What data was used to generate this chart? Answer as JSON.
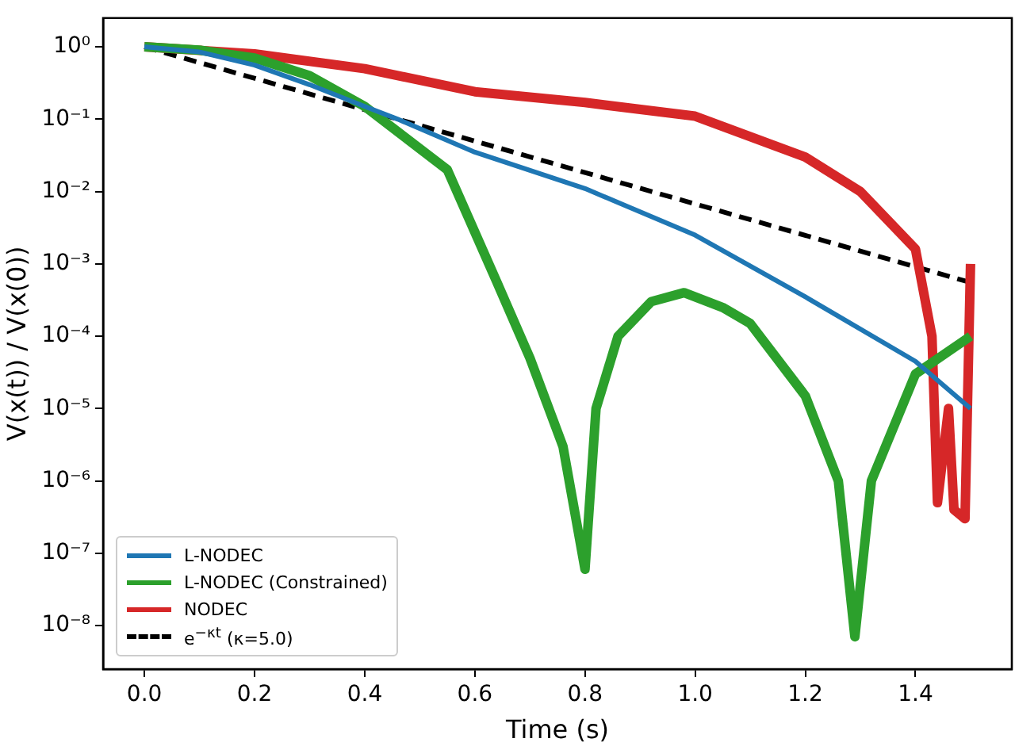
{
  "chart_data": {
    "type": "line",
    "xlabel": "Time (s)",
    "ylabel": "V(x(t)) / V(x(0))",
    "log": "y",
    "legend": "bottom left",
    "grid": false,
    "marker": "none",
    "xlim": [
      -0.075,
      1.575
    ],
    "xticks": [
      {
        "value": 0,
        "label": "0.0"
      },
      {
        "value": 0.2,
        "label": "0.2"
      },
      {
        "value": 0.4,
        "label": "0.4"
      },
      {
        "value": 0.6,
        "label": "0.6"
      },
      {
        "value": 0.8,
        "label": "0.8"
      },
      {
        "value": 1,
        "label": "1.0"
      },
      {
        "value": 1.2,
        "label": "1.2"
      },
      {
        "value": 1.4,
        "label": "1.4"
      }
    ],
    "ylim": [
      2.5e-09,
      2.5
    ],
    "yticks": [
      {
        "value": 1,
        "label": "10⁰"
      },
      {
        "value": 0.1,
        "label": "10⁻¹"
      },
      {
        "value": 0.01,
        "label": "10⁻²"
      },
      {
        "value": 0.001,
        "label": "10⁻³"
      },
      {
        "value": 0.0001,
        "label": "10⁻⁴"
      },
      {
        "value": 1e-05,
        "label": "10⁻⁵"
      },
      {
        "value": 1e-06,
        "label": "10⁻⁶"
      },
      {
        "value": 1e-07,
        "label": "10⁻⁷"
      },
      {
        "value": 1e-08,
        "label": "10⁻⁸"
      }
    ],
    "series": [
      {
        "name": "L-NODEC",
        "color": "#1f77b4",
        "x": [
          0,
          0.1,
          0.2,
          0.3,
          0.4,
          0.46,
          0.6,
          0.8,
          1.0,
          1.2,
          1.4,
          1.5
        ],
        "values": [
          1,
          0.85,
          0.56,
          0.3,
          0.15,
          0.1,
          0.035,
          0.011,
          0.0025,
          0.00035,
          4.5e-05,
          1e-05
        ]
      },
      {
        "name": "L-NODEC (Constrained)",
        "color": "#2ca02c",
        "x": [
          0,
          0.1,
          0.2,
          0.3,
          0.4,
          0.55,
          0.64,
          0.7,
          0.76,
          0.8,
          0.82,
          0.86,
          0.92,
          0.98,
          1.05,
          1.1,
          1.2,
          1.26,
          1.29,
          1.32,
          1.4,
          1.5
        ],
        "values": [
          1,
          0.9,
          0.7,
          0.4,
          0.15,
          0.02,
          0.00056,
          5e-05,
          3e-06,
          6e-08,
          1e-05,
          0.0001,
          0.0003,
          0.0004,
          0.00025,
          0.00015,
          1.5e-05,
          1e-06,
          7e-09,
          1e-06,
          3e-05,
          0.0001
        ]
      },
      {
        "name": "NODEC",
        "color": "#d62728",
        "x": [
          0,
          0.2,
          0.4,
          0.6,
          0.8,
          1.0,
          1.2,
          1.3,
          1.4,
          1.43,
          1.44,
          1.46,
          1.47,
          1.49,
          1.5
        ],
        "values": [
          1,
          0.8,
          0.5,
          0.24,
          0.17,
          0.11,
          0.03,
          0.01,
          0.0016,
          0.0001,
          5e-07,
          1e-05,
          4e-07,
          3e-07,
          0.001
        ]
      },
      {
        "name": "e$^{−κt}$ (κ=5.0)",
        "color": "#000000",
        "line_style": "dashed",
        "x": [
          0,
          1.5
        ],
        "values": [
          1,
          0.000553
        ]
      }
    ]
  }
}
